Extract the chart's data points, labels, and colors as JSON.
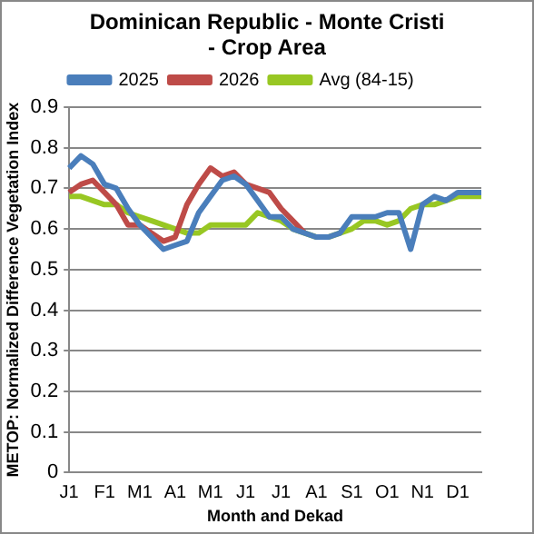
{
  "chart_data": {
    "type": "line",
    "title": "Dominican Republic - Monte  Cristi - Crop Area",
    "xlabel": "Month and Dekad",
    "ylabel": "METOP: Normalized Difference Vegetation Index",
    "categories": [
      "J1",
      null,
      null,
      "F1",
      null,
      null,
      "M1",
      null,
      null,
      "A1",
      null,
      null,
      "M1",
      null,
      null,
      "J1",
      null,
      null,
      "J1",
      null,
      null,
      "A1",
      null,
      null,
      "S1",
      null,
      null,
      "O1",
      null,
      null,
      "N1",
      null,
      null,
      "D1",
      null,
      null
    ],
    "series": [
      {
        "name": "2025",
        "color": "#4a7ebb",
        "values": [
          0.75,
          0.78,
          0.76,
          0.71,
          0.7,
          0.65,
          0.61,
          0.58,
          0.55,
          0.56,
          0.57,
          0.64,
          0.68,
          0.72,
          0.73,
          0.71,
          0.67,
          0.63,
          0.63,
          0.6,
          0.59,
          0.58,
          0.58,
          0.59,
          0.63,
          0.63,
          0.63,
          0.64,
          0.64,
          0.55,
          0.66,
          0.68,
          0.67,
          0.69,
          0.69,
          0.69
        ]
      },
      {
        "name": "2026",
        "color": "#be4b48",
        "values": [
          0.69,
          0.71,
          0.72,
          0.69,
          0.66,
          0.61,
          0.61,
          0.59,
          0.57,
          0.58,
          0.66,
          0.71,
          0.75,
          0.73,
          0.74,
          0.71,
          0.7,
          0.69,
          0.65,
          0.62,
          0.59,
          null,
          null,
          null,
          null,
          null,
          null,
          null,
          null,
          null,
          null,
          null,
          null,
          null,
          null,
          null
        ]
      },
      {
        "name": "Avg (84-15)",
        "color": "#98c723",
        "values": [
          0.68,
          0.68,
          0.67,
          0.66,
          0.66,
          0.64,
          0.63,
          0.62,
          0.61,
          0.6,
          0.59,
          0.59,
          0.61,
          0.61,
          0.61,
          0.61,
          0.64,
          0.63,
          0.62,
          0.6,
          0.59,
          0.58,
          0.58,
          0.59,
          0.6,
          0.62,
          0.62,
          0.61,
          0.62,
          0.65,
          0.66,
          0.66,
          0.67,
          0.68,
          0.68,
          0.68
        ]
      }
    ],
    "ylim": [
      0,
      0.9
    ],
    "yticks": [
      0,
      0.1,
      0.2,
      0.3,
      0.4,
      0.5,
      0.6,
      0.7,
      0.8,
      0.9
    ],
    "grid": "y",
    "legend": "top",
    "marker": "none",
    "line_style": "solid"
  }
}
